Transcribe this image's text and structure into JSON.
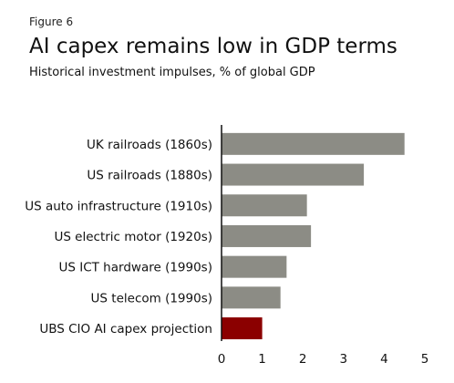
{
  "figure_label": "Figure 6",
  "title": "AI capex remains low in GDP terms",
  "subtitle": "Historical investment impulses, % of global GDP",
  "chart_data": {
    "type": "bar",
    "orientation": "horizontal",
    "categories": [
      "UK railroads (1860s)",
      "US railroads (1880s)",
      "US auto infrastructure (1910s)",
      "US electric motor (1920s)",
      "US ICT hardware (1990s)",
      "US telecom (1990s)",
      "UBS CIO AI capex projection"
    ],
    "values": [
      4.5,
      3.5,
      2.1,
      2.2,
      1.6,
      1.45,
      1.0
    ],
    "colors": [
      "#8c8c85",
      "#8c8c85",
      "#8c8c85",
      "#8c8c85",
      "#8c8c85",
      "#8c8c85",
      "#8b0000"
    ],
    "xticks": [
      0,
      1,
      2,
      3,
      4,
      5
    ],
    "xlim": [
      0,
      5
    ],
    "grid": false
  }
}
